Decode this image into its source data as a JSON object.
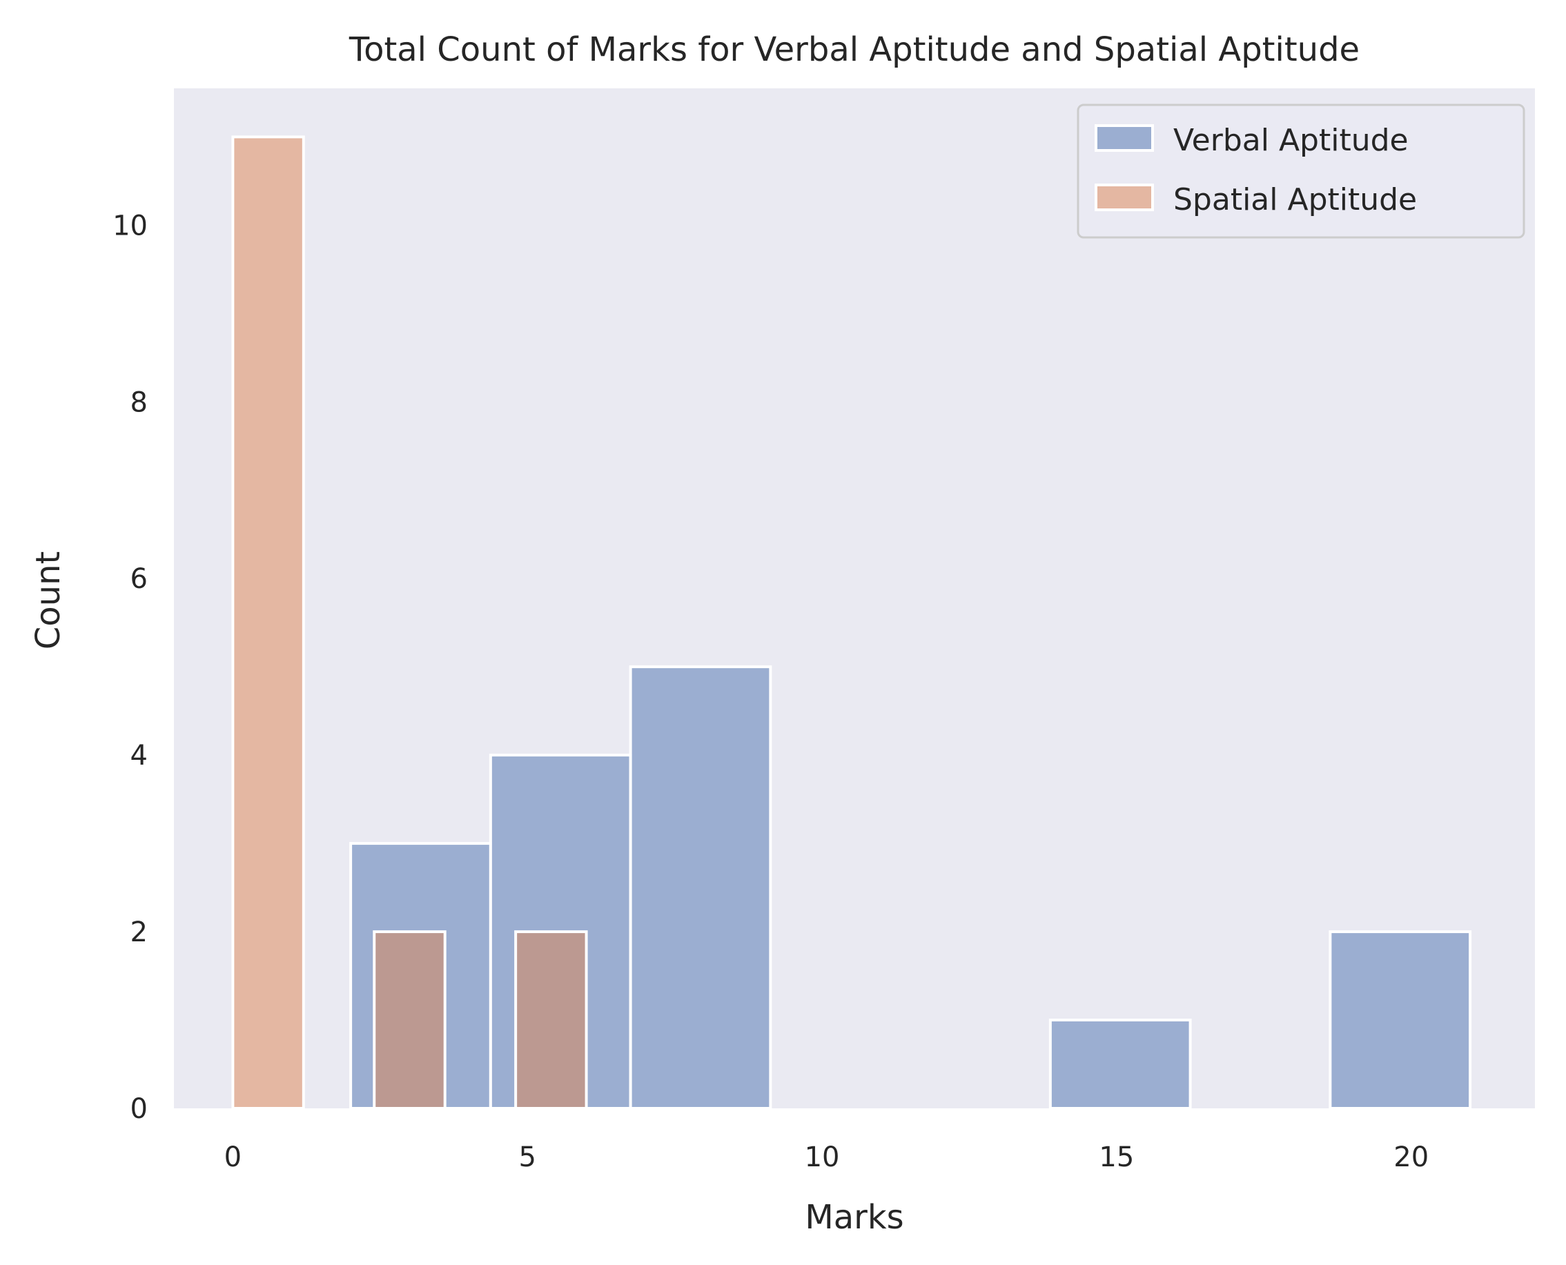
{
  "chart_data": {
    "type": "bar",
    "title": "Total Count of Marks for Verbal Aptitude and Spatial Aptitude",
    "xlabel": "Marks",
    "ylabel": "Count",
    "xlim": [
      -1,
      22.1
    ],
    "ylim": [
      0,
      11.55
    ],
    "xticks": [
      0,
      5,
      10,
      15,
      20
    ],
    "yticks": [
      0,
      2,
      4,
      6,
      8,
      10
    ],
    "grid": false,
    "legend_position": "top-right",
    "background_color": "#eaeaf2",
    "series": [
      {
        "name": "Verbal Aptitude",
        "color": "#4c72b0",
        "opacity": 0.5,
        "bins": [
          {
            "x0": 2.0,
            "x1": 4.375,
            "count": 3
          },
          {
            "x0": 4.375,
            "x1": 6.75,
            "count": 4
          },
          {
            "x0": 6.75,
            "x1": 9.125,
            "count": 5
          },
          {
            "x0": 13.875,
            "x1": 16.25,
            "count": 1
          },
          {
            "x0": 18.625,
            "x1": 21.0,
            "count": 2
          }
        ]
      },
      {
        "name": "Spatial Aptitude",
        "color": "#dd8452",
        "opacity": 0.5,
        "bins": [
          {
            "x0": 0.0,
            "x1": 1.2,
            "count": 11
          },
          {
            "x0": 2.4,
            "x1": 3.6,
            "count": 2
          },
          {
            "x0": 4.8,
            "x1": 6.0,
            "count": 2
          }
        ]
      }
    ]
  }
}
